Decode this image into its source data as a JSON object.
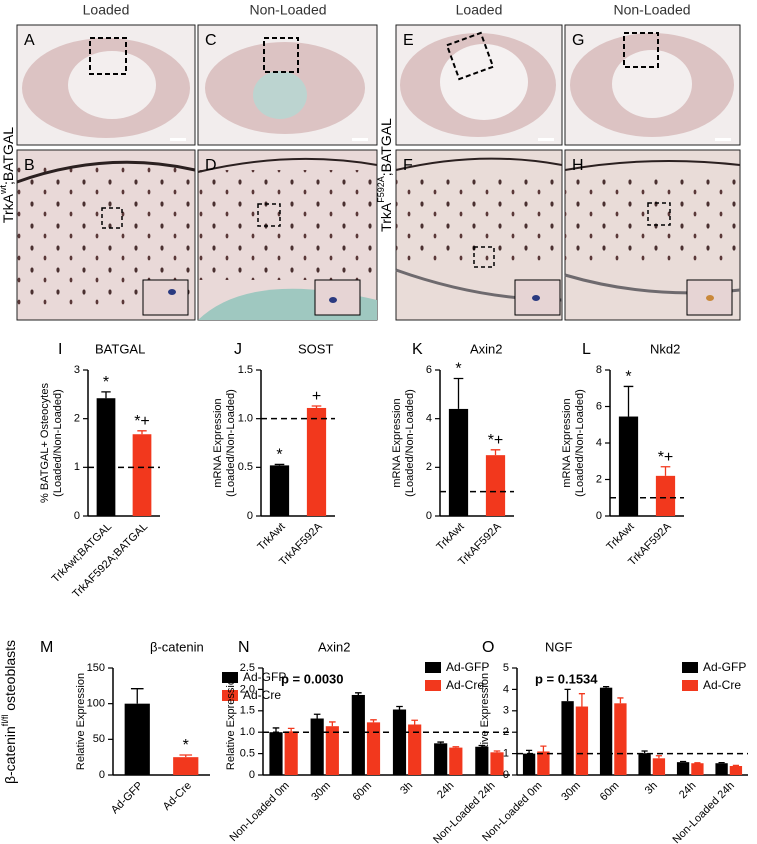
{
  "figure": {
    "column_labels": [
      "Loaded",
      "Non-Loaded",
      "Loaded",
      "Non-Loaded"
    ],
    "panels": [
      "A",
      "C",
      "E",
      "G",
      "B",
      "D",
      "F",
      "H"
    ],
    "row_labels": [
      {
        "text": "TrkA",
        "sup": "wt",
        "rest": ";BATGAL"
      },
      {
        "text": "TrkA",
        "sup": "F592A",
        "rest": ";BATGAL"
      },
      {
        "text": "β-catenin",
        "sup": "fl/fl",
        "rest": " osteoblasts"
      }
    ]
  },
  "chart_data": [
    {
      "type": "bar",
      "panel": "I",
      "title": "BATGAL",
      "ylabel": [
        "% BATGAL+ Osteocytes",
        "(Loaded/Non-Loaded)"
      ],
      "categories": [
        "TrkAwt;BATGAL",
        "TrkAF592A;BATGAL"
      ],
      "values": [
        2.42,
        1.68
      ],
      "errors": [
        0.13,
        0.07
      ],
      "colors": [
        "#000000",
        "#f2381d"
      ],
      "bar_labels": [
        "*",
        "*+"
      ],
      "reference_line": 1,
      "ylim": [
        0,
        3
      ],
      "yticks": [
        0,
        1,
        2,
        3
      ]
    },
    {
      "type": "bar",
      "panel": "J",
      "title": "SOST",
      "ylabel": [
        "mRNA Expression",
        "(Loaded/Non-Loaded)"
      ],
      "categories": [
        "TrkAwt",
        "TrkAF592A"
      ],
      "values": [
        0.52,
        1.11
      ],
      "errors": [
        0.01,
        0.02
      ],
      "colors": [
        "#000000",
        "#f2381d"
      ],
      "bar_labels": [
        "*",
        "+"
      ],
      "reference_line": 1,
      "ylim": [
        0,
        1.5
      ],
      "yticks": [
        0,
        0.5,
        {
          "value": 1,
          "label": "1.0"
        },
        1.5
      ]
    },
    {
      "type": "bar",
      "panel": "K",
      "title": "Axin2",
      "ylabel": [
        "mRNA Expression",
        "(Loaded/Non-Loaded)"
      ],
      "categories": [
        "TrkAwt",
        "TrkAF592A"
      ],
      "values": [
        4.4,
        2.5
      ],
      "errors": [
        1.25,
        0.22
      ],
      "colors": [
        "#000000",
        "#f2381d"
      ],
      "bar_labels": [
        "*",
        "*+"
      ],
      "reference_line": 1,
      "ylim": [
        0,
        6
      ],
      "yticks": [
        0,
        2,
        4,
        6
      ]
    },
    {
      "type": "bar",
      "panel": "L",
      "title": "Nkd2",
      "ylabel": [
        "mRNA Expression",
        "(Loaded/Non-Loaded)"
      ],
      "categories": [
        "TrkAwt",
        "TrkAF592A"
      ],
      "values": [
        5.45,
        2.2
      ],
      "errors": [
        1.65,
        0.5
      ],
      "colors": [
        "#000000",
        "#f2381d"
      ],
      "bar_labels": [
        "*",
        "*+"
      ],
      "reference_line": 1,
      "ylim": [
        0,
        8
      ],
      "yticks": [
        0,
        2,
        4,
        6,
        8
      ]
    },
    {
      "type": "bar",
      "panel": "M",
      "title": "β-catenin",
      "ylabel": [
        "Relative Expression"
      ],
      "categories": [
        "Ad-GFP",
        "Ad-Cre"
      ],
      "values": [
        100,
        25
      ],
      "errors": [
        21,
        3
      ],
      "colors": [
        "#000000",
        "#f2381d"
      ],
      "bar_labels": [
        null,
        "*"
      ],
      "legend": [
        {
          "name": "Ad-GFP",
          "color": "#000000"
        },
        {
          "name": "Ad-Cre",
          "color": "#f2381d"
        }
      ],
      "ylim": [
        0,
        150
      ],
      "yticks": [
        0,
        50,
        100,
        150
      ]
    },
    {
      "type": "grouped_bar",
      "panel": "N",
      "title": "Axin2",
      "ylabel": [
        "Relative Expression"
      ],
      "annotation": "p = 0.0030",
      "categories": [
        "Non-Loaded 0m",
        "30m",
        "60m",
        "3h",
        "24h",
        "Non-Loaded 24h"
      ],
      "reference_line": 1,
      "series": [
        {
          "name": "Ad-GFP",
          "color": "#000000",
          "values": [
            1.0,
            1.32,
            1.87,
            1.53,
            0.74,
            0.66
          ],
          "errors": [
            0.1,
            0.1,
            0.05,
            0.07,
            0.03,
            0.03
          ]
        },
        {
          "name": "Ad-Cre",
          "color": "#f2381d",
          "values": [
            1.02,
            1.14,
            1.23,
            1.18,
            0.64,
            0.53
          ],
          "errors": [
            0.07,
            0.1,
            0.06,
            0.1,
            0.02,
            0.03
          ]
        }
      ],
      "ylim": [
        0,
        2.5
      ],
      "yticks": [
        0,
        0.5,
        {
          "value": 1,
          "label": "1.0"
        },
        1.5,
        {
          "value": 2,
          "label": "2.0"
        },
        2.5
      ]
    },
    {
      "type": "grouped_bar",
      "panel": "O",
      "title": "NGF",
      "ylabel": [
        "Relative Expression"
      ],
      "annotation": "p = 0.1534",
      "categories": [
        "Non-Loaded 0m",
        "30m",
        "60m",
        "3h",
        "24h",
        "Non-Loaded 24h"
      ],
      "reference_line": 1,
      "series": [
        {
          "name": "Ad-GFP",
          "color": "#000000",
          "values": [
            1.0,
            3.45,
            4.08,
            1.02,
            0.6,
            0.55
          ],
          "errors": [
            0.15,
            0.55,
            0.05,
            0.1,
            0.03,
            0.03
          ]
        },
        {
          "name": "Ad-Cre",
          "color": "#f2381d",
          "values": [
            1.1,
            3.2,
            3.35,
            0.78,
            0.55,
            0.42
          ],
          "errors": [
            0.25,
            0.6,
            0.25,
            0.12,
            0.02,
            0.03
          ]
        }
      ],
      "ylim": [
        0,
        5
      ],
      "yticks": [
        0,
        1,
        2,
        3,
        4,
        5
      ]
    }
  ]
}
